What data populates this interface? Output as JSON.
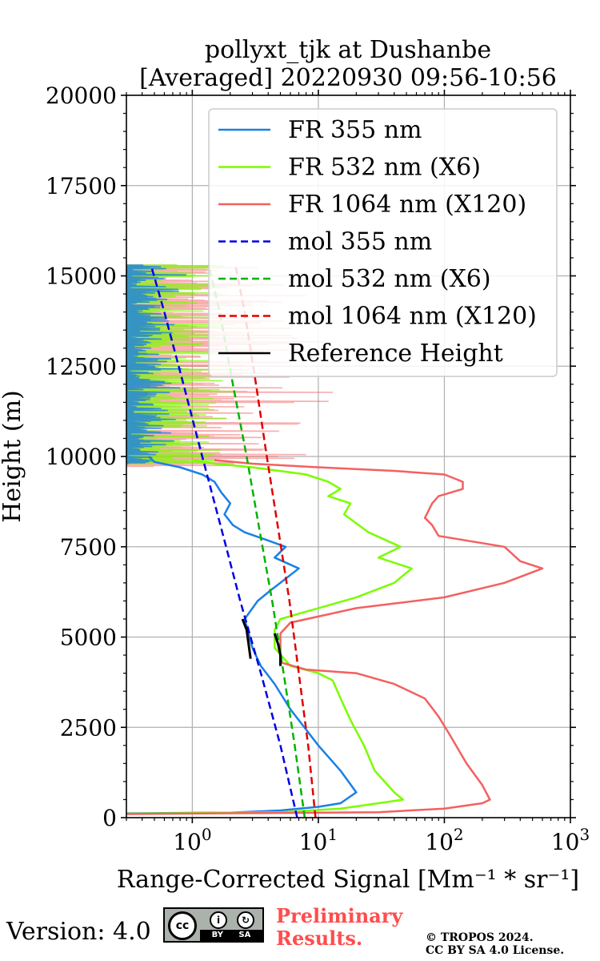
{
  "chart_data": {
    "type": "line",
    "title": [
      "pollyxt_tjk at Dushanbe",
      "[Averaged] 20220930 09:56-10:56"
    ],
    "xlabel": "Range-Corrected Signal [Mm⁻¹ * sr⁻¹]",
    "ylabel": "Height (m)",
    "xscale": "log",
    "xlim": [
      0.3,
      1000
    ],
    "ylim": [
      0,
      20000
    ],
    "x_ticks": [
      {
        "value": 1,
        "base": "10",
        "exp": "0"
      },
      {
        "value": 10,
        "base": "10",
        "exp": "1"
      },
      {
        "value": 100,
        "base": "10",
        "exp": "2"
      },
      {
        "value": 1000,
        "base": "10",
        "exp": "3"
      }
    ],
    "y_ticks": [
      0,
      2500,
      5000,
      7500,
      10000,
      12500,
      15000,
      17500,
      20000
    ],
    "grid": true,
    "legend_position": "top-right",
    "series": [
      {
        "name": "FR 355 nm",
        "color": "#1a80e6",
        "style": "solid",
        "points": [
          [
            0.3,
            120
          ],
          [
            2,
            140
          ],
          [
            5,
            200
          ],
          [
            10,
            300
          ],
          [
            15,
            400
          ],
          [
            20,
            700
          ],
          [
            15,
            1300
          ],
          [
            10,
            2000
          ],
          [
            6,
            3000
          ],
          [
            4.5,
            3700
          ],
          [
            3.5,
            4200
          ],
          [
            3.0,
            4700
          ],
          [
            2.8,
            5100
          ],
          [
            2.6,
            5500
          ],
          [
            3.3,
            6000
          ],
          [
            4.2,
            6300
          ],
          [
            5,
            6500
          ],
          [
            7,
            6900
          ],
          [
            4.5,
            7200
          ],
          [
            5.5,
            7500
          ],
          [
            3.8,
            7700
          ],
          [
            2.6,
            7900
          ],
          [
            2.1,
            8100
          ],
          [
            1.8,
            8400
          ],
          [
            2.0,
            8700
          ],
          [
            1.7,
            9000
          ],
          [
            1.5,
            9300
          ],
          [
            1.2,
            9500
          ],
          [
            0.8,
            9700
          ],
          [
            0.5,
            9850
          ],
          [
            0.45,
            10000
          ]
        ]
      },
      {
        "name": "FR 532 nm (X6)",
        "color": "#7cfc00",
        "style": "solid",
        "points": [
          [
            0.3,
            110
          ],
          [
            5,
            150
          ],
          [
            15,
            250
          ],
          [
            30,
            400
          ],
          [
            47,
            500
          ],
          [
            40,
            700
          ],
          [
            28,
            1300
          ],
          [
            23,
            2000
          ],
          [
            18,
            2700
          ],
          [
            15,
            3300
          ],
          [
            13,
            3800
          ],
          [
            10,
            4000
          ],
          [
            6,
            4200
          ],
          [
            4.5,
            4700
          ],
          [
            4.5,
            5200
          ],
          [
            5,
            5500
          ],
          [
            10,
            5800
          ],
          [
            20,
            6100
          ],
          [
            40,
            6500
          ],
          [
            55,
            6900
          ],
          [
            30,
            7200
          ],
          [
            45,
            7500
          ],
          [
            25,
            7900
          ],
          [
            16,
            8400
          ],
          [
            18,
            8700
          ],
          [
            12,
            8900
          ],
          [
            15,
            9100
          ],
          [
            12,
            9300
          ],
          [
            8,
            9500
          ],
          [
            3,
            9700
          ],
          [
            1.5,
            9800
          ],
          [
            1.0,
            9900
          ]
        ]
      },
      {
        "name": "FR 1064 nm (X120)",
        "color": "#f46060",
        "style": "solid",
        "points": [
          [
            0.3,
            100
          ],
          [
            30,
            150
          ],
          [
            100,
            250
          ],
          [
            200,
            400
          ],
          [
            230,
            500
          ],
          [
            200,
            900
          ],
          [
            150,
            1500
          ],
          [
            110,
            2300
          ],
          [
            90,
            2800
          ],
          [
            70,
            3300
          ],
          [
            40,
            3700
          ],
          [
            20,
            4000
          ],
          [
            8,
            4100
          ],
          [
            5,
            4300
          ],
          [
            5,
            5100
          ],
          [
            6,
            5400
          ],
          [
            20,
            5800
          ],
          [
            100,
            6100
          ],
          [
            300,
            6500
          ],
          [
            600,
            6900
          ],
          [
            400,
            7100
          ],
          [
            300,
            7500
          ],
          [
            90,
            7800
          ],
          [
            80,
            8100
          ],
          [
            70,
            8300
          ],
          [
            80,
            8700
          ],
          [
            90,
            8900
          ],
          [
            140,
            9100
          ],
          [
            140,
            9300
          ],
          [
            100,
            9500
          ],
          [
            40,
            9600
          ],
          [
            10,
            9700
          ],
          [
            3,
            9800
          ],
          [
            1.5,
            9900
          ]
        ]
      },
      {
        "name": "mol 355 nm",
        "color": "#0000e6",
        "style": "dashed",
        "points": [
          [
            6.8,
            0
          ],
          [
            5.0,
            2000
          ],
          [
            3.5,
            4000
          ],
          [
            2.4,
            6000
          ],
          [
            1.7,
            8000
          ],
          [
            1.2,
            10000
          ],
          [
            0.85,
            12000
          ],
          [
            0.6,
            14000
          ],
          [
            0.47,
            15300
          ]
        ]
      },
      {
        "name": "mol 532 nm (X6)",
        "color": "#00b300",
        "style": "dashed",
        "points": [
          [
            7.8,
            0
          ],
          [
            6.5,
            2000
          ],
          [
            5.3,
            4000
          ],
          [
            4.3,
            6000
          ],
          [
            3.4,
            8000
          ],
          [
            2.7,
            10000
          ],
          [
            2.1,
            12000
          ],
          [
            1.65,
            14000
          ],
          [
            1.35,
            15300
          ]
        ]
      },
      {
        "name": "mol 1064 nm (X120)",
        "color": "#e00000",
        "style": "dashed",
        "points": [
          [
            9.5,
            0
          ],
          [
            8.3,
            2000
          ],
          [
            7.0,
            4000
          ],
          [
            5.9,
            6000
          ],
          [
            4.8,
            8000
          ],
          [
            3.9,
            10000
          ],
          [
            3.2,
            12000
          ],
          [
            2.6,
            14000
          ],
          [
            2.2,
            15300
          ]
        ]
      },
      {
        "name": "Reference Height",
        "color": "#000000",
        "style": "solid",
        "points": []
      }
    ],
    "reference_segments": [
      {
        "color": "#000000",
        "points": [
          [
            2.5,
            5500
          ],
          [
            2.7,
            5200
          ],
          [
            2.8,
            4800
          ],
          [
            2.9,
            4400
          ]
        ]
      },
      {
        "color": "#000000",
        "points": [
          [
            4.5,
            5100
          ],
          [
            4.8,
            4800
          ],
          [
            5.0,
            4500
          ],
          [
            5.0,
            4200
          ]
        ]
      }
    ],
    "noise_bands": [
      {
        "series": "FR 1064 nm (X120)",
        "color": "#f46060",
        "fill_opacity": 0.5,
        "x_range": [
          0.3,
          14
        ],
        "y_range": [
          9700,
          15300
        ]
      },
      {
        "series": "FR 532 nm (X6)",
        "color": "#7cfc00",
        "fill_opacity": 0.7,
        "x_range": [
          0.3,
          3
        ],
        "y_range": [
          9800,
          15300
        ]
      },
      {
        "series": "FR 355 nm",
        "color": "#1a80e6",
        "fill_opacity": 0.8,
        "x_range": [
          0.3,
          0.9
        ],
        "y_range": [
          9800,
          15300
        ]
      }
    ]
  },
  "footer": {
    "version": "Version: 4.0",
    "badge_cc": "cc",
    "badge_by": "BY SA",
    "preliminary_line1": "Preliminary",
    "preliminary_line2": "Results.",
    "copyright_line1": "© TROPOS 2024.",
    "copyright_line2": "CC BY SA 4.0 License."
  }
}
